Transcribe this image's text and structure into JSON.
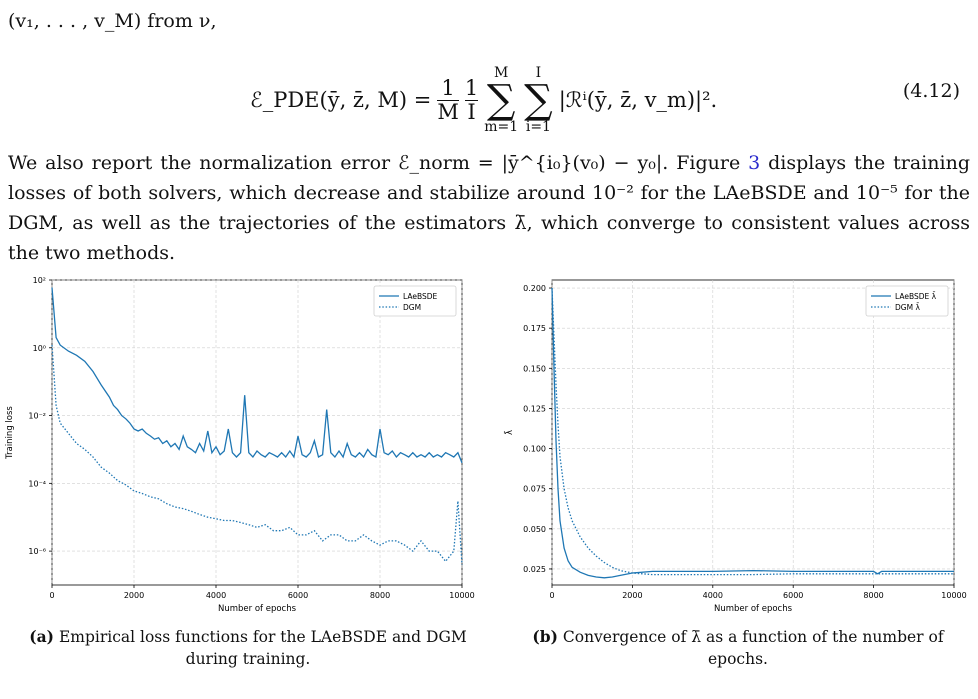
{
  "text": {
    "line1": "(v₁, . . . , v_M) from ν,",
    "equation": {
      "lhs": "ℰ_PDE(ȳ, z̄, M) =",
      "frac1_num": "1",
      "frac1_den": "M",
      "frac2_num": "1",
      "frac2_den": "I",
      "sum1_top": "M",
      "sum1_bottom": "m=1",
      "sum2_top": "I",
      "sum2_bottom": "i=1",
      "body": "|ℛⁱ(ȳ, z̄, v_m)|².",
      "number": "(4.12)"
    },
    "paragraph_part1": "We also report the normalization error ℰ_norm = |ȳ^{i₀}(v₀) − y₀|. Figure ",
    "figure_ref": "3",
    "paragraph_part2": " displays the training losses of both solvers, which decrease and stabilize around 10⁻² for the LAeBSDE and 10⁻⁵ for the DGM, as well as the trajectories of the estimators λ̄, which converge to consistent values across the two methods."
  },
  "captions": {
    "a_label": "(a)",
    "a_text": "Empirical loss functions for the LAeBSDE and DGM during training.",
    "b_label": "(b)",
    "b_text": "Convergence of λ̄ as a function of the number of epochs."
  },
  "chart_data": [
    {
      "type": "line",
      "xlabel": "Number of epochs",
      "ylabel": "Training loss",
      "yscale": "log",
      "xlim": [
        0,
        10000
      ],
      "ylim_log10": [
        -7,
        2
      ],
      "xticks": [
        "0",
        "2000",
        "4000",
        "6000",
        "8000",
        "10000"
      ],
      "yticks": [
        {
          "label": "10²",
          "exp": 2
        },
        {
          "label": "10⁰",
          "exp": 0
        },
        {
          "label": "10⁻²",
          "exp": -2
        },
        {
          "label": "10⁻⁴",
          "exp": -4
        },
        {
          "label": "10⁻⁶",
          "exp": -6
        }
      ],
      "grid": true,
      "legend": "top-right",
      "series": [
        {
          "name": "LAeBSDE",
          "style": "solid",
          "color": "#1f77b4",
          "x": [
            0,
            100,
            200,
            400,
            600,
            800,
            1000,
            1200,
            1400,
            1500,
            1600,
            1700,
            1800,
            1900,
            2000,
            2100,
            2200,
            2300,
            2400,
            2500,
            2600,
            2700,
            2800,
            2900,
            3000,
            3100,
            3200,
            3300,
            3400,
            3500,
            3600,
            3700,
            3800,
            3900,
            4000,
            4100,
            4200,
            4300,
            4400,
            4500,
            4600,
            4700,
            4800,
            4900,
            5000,
            5100,
            5200,
            5300,
            5400,
            5500,
            5600,
            5700,
            5800,
            5900,
            6000,
            6100,
            6200,
            6300,
            6400,
            6500,
            6600,
            6700,
            6800,
            6900,
            7000,
            7100,
            7200,
            7300,
            7400,
            7500,
            7600,
            7700,
            7800,
            7900,
            8000,
            8100,
            8200,
            8300,
            8400,
            8500,
            8600,
            8700,
            8800,
            8900,
            9000,
            9100,
            9200,
            9300,
            9400,
            9500,
            9600,
            9700,
            9800,
            9900,
            10000
          ],
          "y": [
            60,
            2,
            1.2,
            0.8,
            0.6,
            0.4,
            0.2,
            0.08,
            0.035,
            0.02,
            0.015,
            0.01,
            0.008,
            0.006,
            0.004,
            0.0035,
            0.004,
            0.003,
            0.0025,
            0.002,
            0.0022,
            0.0015,
            0.0018,
            0.0012,
            0.0015,
            0.001,
            0.0025,
            0.0012,
            0.001,
            0.0008,
            0.0015,
            0.0009,
            0.0035,
            0.0008,
            0.0012,
            0.0007,
            0.0009,
            0.004,
            0.0008,
            0.0006,
            0.0008,
            0.04,
            0.0008,
            0.0006,
            0.0009,
            0.0007,
            0.0006,
            0.0008,
            0.0007,
            0.0006,
            0.0008,
            0.0006,
            0.0009,
            0.0006,
            0.0025,
            0.0007,
            0.0006,
            0.0008,
            0.0018,
            0.0006,
            0.0007,
            0.015,
            0.0008,
            0.0006,
            0.0009,
            0.0006,
            0.0015,
            0.0007,
            0.0006,
            0.0008,
            0.0006,
            0.001,
            0.0007,
            0.0006,
            0.004,
            0.0008,
            0.0007,
            0.0009,
            0.0006,
            0.0008,
            0.0007,
            0.0006,
            0.0008,
            0.0006,
            0.0007,
            0.0006,
            0.0008,
            0.0006,
            0.0007,
            0.0006,
            0.0008,
            0.0007,
            0.0006,
            0.0008,
            0.0004
          ]
        },
        {
          "name": "DGM",
          "style": "dotted",
          "color": "#1f77b4",
          "x": [
            0,
            100,
            200,
            400,
            600,
            800,
            1000,
            1200,
            1400,
            1600,
            1800,
            2000,
            2200,
            2400,
            2600,
            2800,
            3000,
            3200,
            3400,
            3600,
            3800,
            4000,
            4200,
            4400,
            4600,
            4800,
            5000,
            5200,
            5400,
            5600,
            5800,
            6000,
            6200,
            6400,
            6600,
            6800,
            7000,
            7200,
            7400,
            7600,
            7800,
            8000,
            8200,
            8400,
            8600,
            8800,
            9000,
            9200,
            9400,
            9600,
            9800,
            9900,
            10000
          ],
          "y": [
            1.2,
            0.02,
            0.006,
            0.003,
            0.0015,
            0.001,
            0.0006,
            0.0003,
            0.0002,
            0.00012,
            9e-05,
            6e-05,
            5e-05,
            4e-05,
            3.5e-05,
            2.5e-05,
            2e-05,
            1.8e-05,
            1.5e-05,
            1.2e-05,
            1e-05,
            9e-06,
            8e-06,
            8e-06,
            7e-06,
            6e-06,
            5e-06,
            6e-06,
            4e-06,
            4e-06,
            5e-06,
            3e-06,
            3e-06,
            4e-06,
            2e-06,
            3e-06,
            3e-06,
            2e-06,
            2e-06,
            3e-06,
            2e-06,
            1.5e-06,
            2e-06,
            2e-06,
            1.5e-06,
            1e-06,
            2e-06,
            1e-06,
            1e-06,
            5e-07,
            1e-06,
            3e-05,
            4e-07
          ]
        }
      ]
    },
    {
      "type": "line",
      "xlabel": "Number of epochs",
      "ylabel": "λ̄",
      "xlim": [
        0,
        10000
      ],
      "ylim": [
        0.015,
        0.205
      ],
      "xticks": [
        "0",
        "2000",
        "4000",
        "6000",
        "8000",
        "10000"
      ],
      "yticks": [
        "0.025",
        "0.050",
        "0.075",
        "0.100",
        "0.125",
        "0.150",
        "0.175",
        "0.200"
      ],
      "grid": true,
      "legend": "top-right",
      "series": [
        {
          "name": "LAeBSDE λ̄",
          "style": "solid",
          "color": "#1f77b4",
          "x": [
            0,
            50,
            100,
            150,
            200,
            300,
            400,
            500,
            700,
            900,
            1100,
            1300,
            1500,
            1700,
            2000,
            2500,
            3000,
            4000,
            5000,
            6000,
            7000,
            8000,
            8100,
            8200,
            9000,
            10000
          ],
          "y": [
            0.2,
            0.15,
            0.105,
            0.075,
            0.055,
            0.038,
            0.03,
            0.026,
            0.023,
            0.021,
            0.02,
            0.0195,
            0.02,
            0.021,
            0.0225,
            0.0235,
            0.0235,
            0.0235,
            0.024,
            0.0235,
            0.0235,
            0.0235,
            0.022,
            0.0235,
            0.0235,
            0.0235
          ]
        },
        {
          "name": "DGM λ̄",
          "style": "dotted",
          "color": "#1f77b4",
          "x": [
            0,
            50,
            100,
            150,
            200,
            300,
            400,
            500,
            700,
            900,
            1100,
            1300,
            1500,
            1700,
            2000,
            2500,
            3000,
            4000,
            5000,
            6000,
            7000,
            8000,
            9000,
            10000
          ],
          "y": [
            0.2,
            0.17,
            0.14,
            0.115,
            0.095,
            0.075,
            0.063,
            0.055,
            0.045,
            0.038,
            0.033,
            0.029,
            0.026,
            0.024,
            0.0225,
            0.0215,
            0.0215,
            0.0215,
            0.0215,
            0.022,
            0.022,
            0.022,
            0.022,
            0.022
          ]
        }
      ]
    }
  ]
}
